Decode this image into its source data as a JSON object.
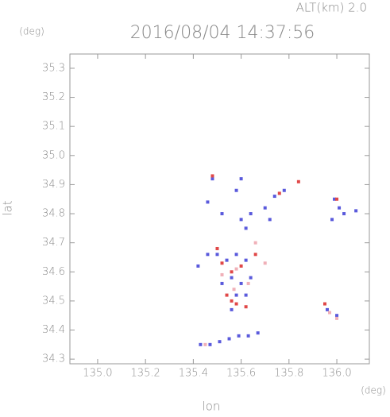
{
  "chart_data": {
    "type": "scatter",
    "title": "2016/08/04 14:37:56",
    "subtitle": "ALT(km) 2.0",
    "y_unit": "(deg)",
    "x_unit": "(deg)",
    "xlabel": "lon",
    "ylabel": "lat",
    "xlim": [
      134.884,
      136.136
    ],
    "ylim": [
      34.284,
      35.349
    ],
    "xticks": [
      {
        "value": 135.0,
        "label": "135.0"
      },
      135.2,
      135.4,
      135.6,
      135.8,
      {
        "value": 136.0,
        "label": "136.0"
      }
    ],
    "yticks": [
      34.3,
      34.4,
      34.5,
      34.6,
      34.7,
      34.8,
      34.9,
      {
        "value": 35.0,
        "label": "35.0"
      },
      35.1,
      35.2,
      35.3
    ],
    "series": [
      {
        "color": "#5a5adc",
        "x": [
          135.48,
          135.6,
          135.46,
          135.52,
          135.58,
          135.64,
          135.7,
          135.74,
          135.72,
          135.78,
          135.6,
          135.62,
          135.42,
          135.46,
          135.5,
          135.54,
          135.58,
          135.62,
          135.56,
          135.6,
          135.64,
          135.52,
          135.58,
          135.62,
          135.56,
          135.99,
          136.01,
          136.03,
          135.98,
          136.08,
          135.96,
          136.0,
          135.43,
          135.47,
          135.51,
          135.55,
          135.59,
          135.63,
          135.67
        ],
        "y": [
          34.92,
          34.92,
          34.84,
          34.8,
          34.88,
          34.8,
          34.82,
          34.86,
          34.78,
          34.88,
          34.78,
          34.75,
          34.62,
          34.66,
          34.66,
          34.64,
          34.66,
          34.64,
          34.58,
          34.56,
          34.58,
          34.56,
          34.52,
          34.52,
          34.47,
          34.85,
          34.82,
          34.8,
          34.78,
          34.81,
          34.47,
          34.45,
          34.35,
          34.35,
          34.36,
          34.37,
          34.38,
          34.38,
          34.39
        ]
      },
      {
        "color": "#e04848",
        "x": [
          135.48,
          135.84,
          135.76,
          135.5,
          135.52,
          135.56,
          135.6,
          135.54,
          135.56,
          135.58,
          135.62,
          136.0,
          135.95,
          135.66
        ],
        "y": [
          34.93,
          34.91,
          34.87,
          34.68,
          34.63,
          34.6,
          34.62,
          34.52,
          34.5,
          34.49,
          34.48,
          34.85,
          34.49,
          34.66
        ]
      },
      {
        "color": "#f0b0b8",
        "x": [
          135.58,
          135.63,
          135.52,
          135.66,
          135.7,
          135.97,
          136.0,
          135.45,
          135.57
        ],
        "y": [
          34.61,
          34.56,
          34.59,
          34.7,
          34.63,
          34.46,
          34.44,
          34.35,
          34.54
        ]
      }
    ]
  }
}
